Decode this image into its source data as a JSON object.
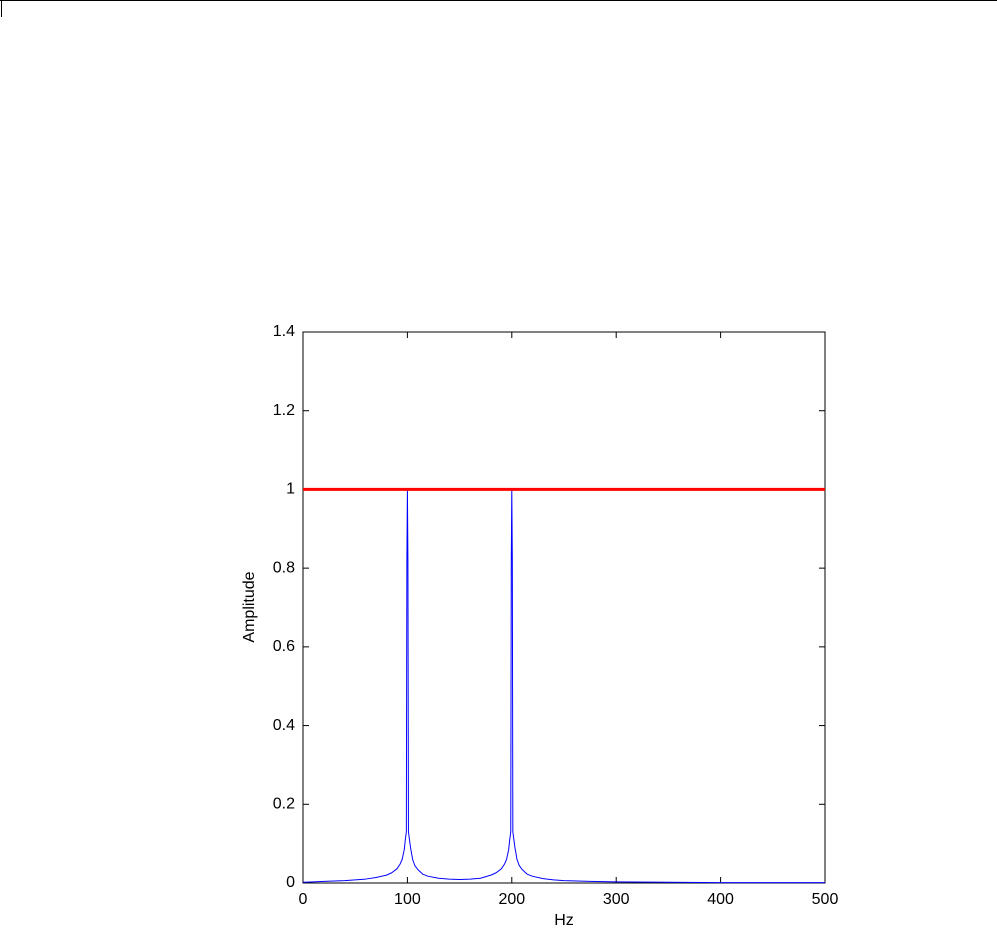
{
  "chart_data": {
    "type": "line",
    "x_label": "Hz",
    "y_label": "Amplitude",
    "xlim": [
      0,
      500
    ],
    "xticks": [
      0,
      100,
      200,
      300,
      400,
      500
    ],
    "ylim": [
      0,
      1.4
    ],
    "yticks": [
      0,
      0.2,
      0.4,
      0.6,
      0.8,
      1,
      1.2,
      1.4
    ],
    "grid": false,
    "series": [
      {
        "color": "#0000ff",
        "width": 1,
        "x": [
          0,
          10,
          20,
          30,
          40,
          50,
          60,
          70,
          80,
          85,
          90,
          93,
          95,
          97,
          98,
          99,
          99.5,
          100,
          100.5,
          101,
          102,
          103,
          105,
          107,
          110,
          115,
          120,
          130,
          140,
          150,
          160,
          170,
          180,
          185,
          190,
          193,
          195,
          197,
          198,
          199,
          199.5,
          200,
          200.5,
          201,
          202,
          203,
          205,
          207,
          210,
          215,
          220,
          230,
          240,
          250,
          275,
          300,
          350,
          400,
          450,
          500
        ],
        "values": [
          0.002,
          0.003,
          0.004,
          0.005,
          0.006,
          0.008,
          0.01,
          0.014,
          0.02,
          0.026,
          0.036,
          0.048,
          0.06,
          0.085,
          0.11,
          0.13,
          0.82,
          1,
          0.82,
          0.13,
          0.11,
          0.09,
          0.06,
          0.045,
          0.034,
          0.022,
          0.017,
          0.012,
          0.01,
          0.009,
          0.01,
          0.012,
          0.02,
          0.026,
          0.036,
          0.048,
          0.06,
          0.085,
          0.11,
          0.13,
          0.82,
          1,
          0.82,
          0.13,
          0.11,
          0.09,
          0.06,
          0.045,
          0.034,
          0.022,
          0.017,
          0.011,
          0.008,
          0.006,
          0.004,
          0.003,
          0.002,
          0.001,
          0.001,
          0.001
        ]
      },
      {
        "color": "#ff0000",
        "width": 3,
        "x": [
          0,
          500
        ],
        "values": [
          1,
          1
        ]
      }
    ]
  }
}
